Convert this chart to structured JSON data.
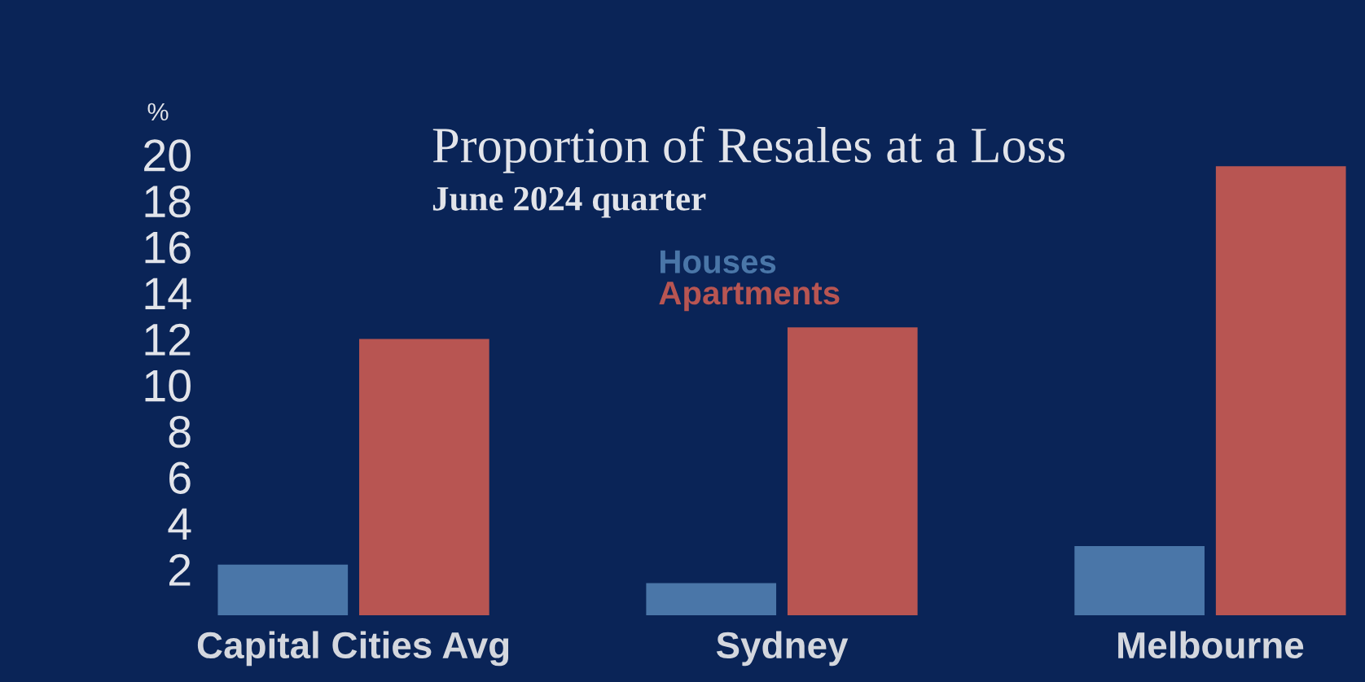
{
  "chart_data": {
    "type": "bar",
    "title": "Proportion of Resales at a Loss",
    "subtitle": "June 2024 quarter",
    "ylabel": "%",
    "categories": [
      "Capital Cities Avg",
      "Sydney",
      "Melbourne"
    ],
    "series": [
      {
        "name": "Houses",
        "color": "#4a76a8",
        "values": [
          2.2,
          1.4,
          3.0
        ]
      },
      {
        "name": "Apartments",
        "color": "#b85552",
        "values": [
          12.0,
          12.5,
          19.5
        ]
      }
    ],
    "ylim": [
      0,
      20
    ],
    "yticks": [
      2,
      4,
      6,
      8,
      10,
      12,
      14,
      16,
      18,
      20
    ],
    "grid": false,
    "legend": "top"
  }
}
